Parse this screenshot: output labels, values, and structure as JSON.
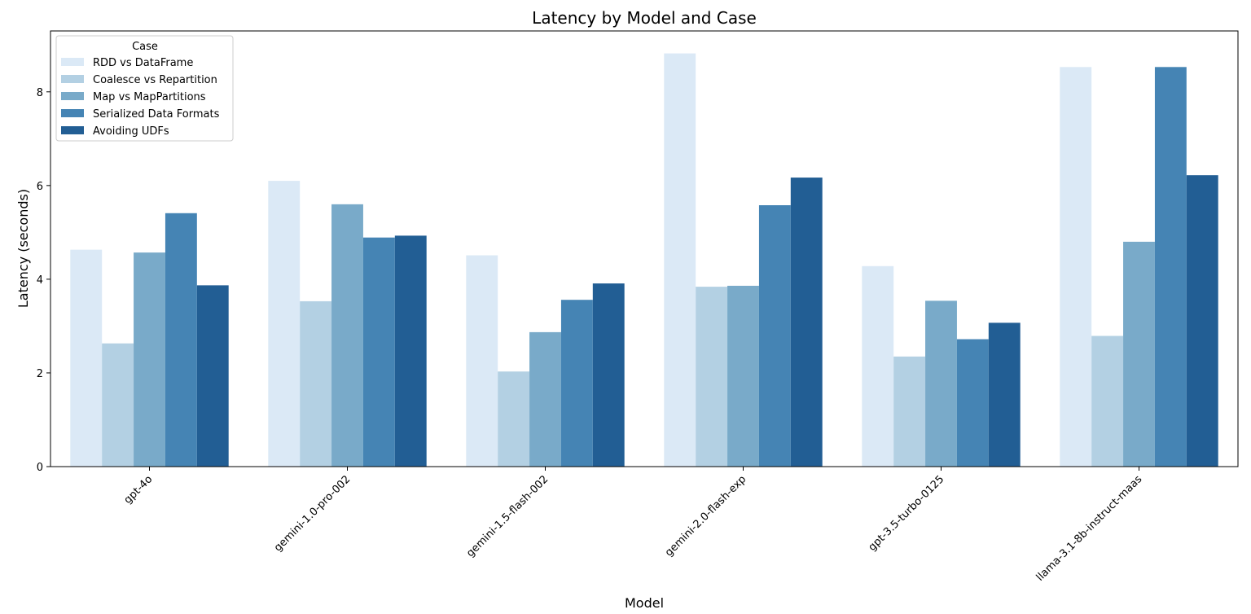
{
  "chart_data": {
    "type": "bar",
    "title": "Latency by Model and Case",
    "xlabel": "Model",
    "ylabel": "Latency (seconds)",
    "ylim": [
      0,
      9.3
    ],
    "yticks": [
      "0",
      "2",
      "4",
      "6",
      "8"
    ],
    "grid": false,
    "legend": {
      "title": "Case",
      "position": "top-left"
    },
    "categories": [
      "gpt-4o",
      "gemini-1.0-pro-002",
      "gemini-1.5-flash-002",
      "gemini-2.0-flash-exp",
      "gpt-3.5-turbo-0125",
      "llama-3.1-8b-instruct-maas"
    ],
    "series": [
      {
        "name": "RDD vs DataFrame",
        "color": "#dbe9f6",
        "values": [
          4.63,
          6.1,
          4.51,
          8.82,
          4.28,
          8.53
        ]
      },
      {
        "name": "Coalesce vs Repartition",
        "color": "#b3d0e3",
        "values": [
          2.63,
          3.53,
          2.03,
          3.84,
          2.35,
          2.79
        ]
      },
      {
        "name": "Map vs MapPartitions",
        "color": "#79aac9",
        "values": [
          4.57,
          5.6,
          2.87,
          3.86,
          3.54,
          4.8
        ]
      },
      {
        "name": "Serialized Data Formats",
        "color": "#4584b4",
        "values": [
          5.41,
          4.89,
          3.56,
          5.58,
          2.72,
          8.53
        ]
      },
      {
        "name": "Avoiding UDFs",
        "color": "#225e94",
        "values": [
          3.87,
          4.93,
          3.91,
          6.17,
          3.07,
          6.22
        ]
      }
    ]
  }
}
